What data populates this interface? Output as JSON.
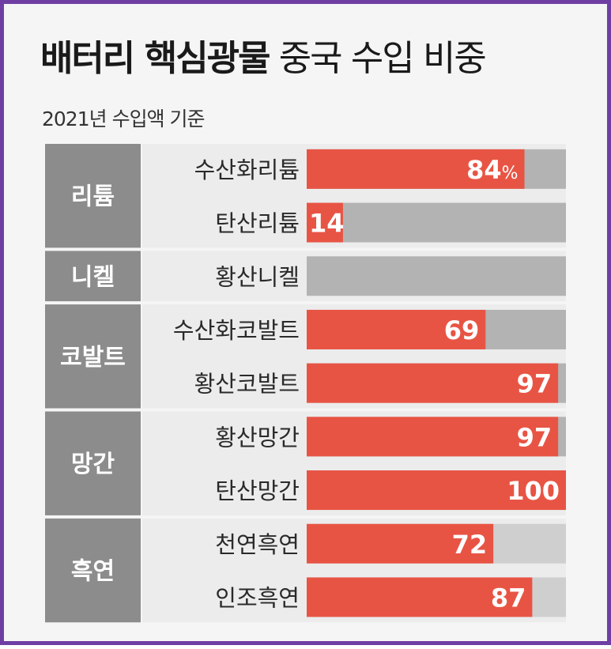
{
  "title": {
    "bold": "배터리 핵심광물",
    "normal": "중국 수입 비중"
  },
  "subtitle": "2021년 수입액 기준",
  "colors": {
    "value": "#e85444",
    "track": "#b3b3b3",
    "track_light": "#cfcfcf",
    "group_label": "#8c8c8c",
    "border": "#6f3ea3"
  },
  "chart_data": {
    "type": "bar",
    "orientation": "horizontal",
    "title": "배터리 핵심광물 중국 수입 비중",
    "subtitle": "2021년 수입액 기준",
    "unit": "%",
    "xlim": [
      0,
      100
    ],
    "groups": [
      {
        "name": "리튬",
        "items": [
          {
            "label": "수산화리튬",
            "value": 84,
            "value_label": "84",
            "unit_label": "%"
          },
          {
            "label": "탄산리튬",
            "value": 14,
            "value_label": "14"
          }
        ]
      },
      {
        "name": "니켈",
        "items": [
          {
            "label": "황산니켈",
            "value": 0
          }
        ]
      },
      {
        "name": "코발트",
        "items": [
          {
            "label": "수산화코발트",
            "value": 69,
            "value_label": "69"
          },
          {
            "label": "황산코발트",
            "value": 97,
            "value_label": "97"
          }
        ]
      },
      {
        "name": "망간",
        "items": [
          {
            "label": "황산망간",
            "value": 97,
            "value_label": "97"
          },
          {
            "label": "탄산망간",
            "value": 100,
            "value_label": "100"
          }
        ]
      },
      {
        "name": "흑연",
        "items": [
          {
            "label": "천연흑연",
            "value": 72,
            "value_label": "72"
          },
          {
            "label": "인조흑연",
            "value": 87,
            "value_label": "87"
          }
        ]
      }
    ]
  }
}
